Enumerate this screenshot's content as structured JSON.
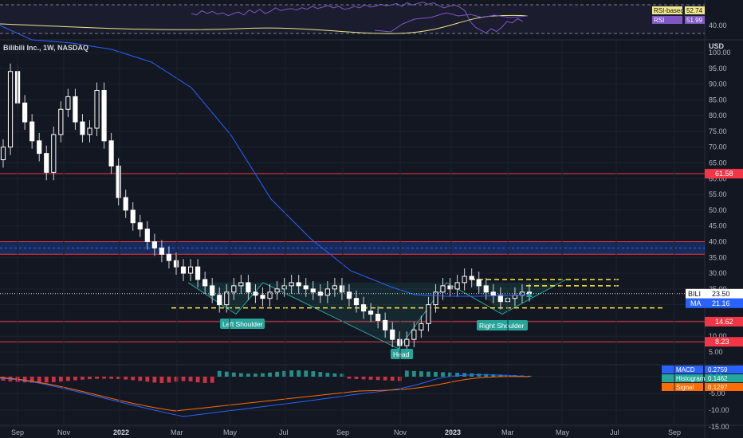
{
  "header": {
    "symbol_line": "Bilibili Inc., 1W, NASDAQ",
    "currency": "USD"
  },
  "rsi": {
    "labels": [
      {
        "name": "RSI-based MA",
        "value": "52.74",
        "color": "#f0e68c",
        "text": "#131722"
      },
      {
        "name": "RSI",
        "value": "51.99",
        "color": "#7e57c2",
        "text": "#ffffff"
      }
    ],
    "ticks": [
      "40.00"
    ]
  },
  "price_axis": {
    "ticks": [
      "100.00",
      "95.00",
      "90.00",
      "85.00",
      "80.00",
      "75.00",
      "70.00",
      "65.00",
      "60.00",
      "55.00",
      "50.00",
      "45.00",
      "40.00",
      "35.00",
      "30.00",
      "25.00",
      "20.00",
      "15.00",
      "10.00",
      "5.00"
    ]
  },
  "price_tags": [
    {
      "text": "61.58",
      "color": "#f23645",
      "price": 61.58
    },
    {
      "text": "14.62",
      "color": "#f23645",
      "price": 14.62
    },
    {
      "text": "8.23",
      "color": "#f23645",
      "price": 8.23
    }
  ],
  "last_price": {
    "symbol": "BILI",
    "value": "23.50",
    "ma_label": "MA",
    "ma_value": "21.16"
  },
  "macd": {
    "labels": [
      {
        "name": "MACD",
        "value": "0.2759",
        "color": "#2962ff"
      },
      {
        "name": "Histogram",
        "value": "0.1462",
        "color": "#26a69a"
      },
      {
        "name": "Signal",
        "value": "0.1297",
        "color": "#ff6d00"
      }
    ],
    "ticks": [
      "0.00",
      "-5.00",
      "-10.00",
      "-15.00"
    ]
  },
  "time_axis": [
    "Sep",
    "Nov",
    "2022",
    "Mar",
    "May",
    "Jul",
    "Sep",
    "Nov",
    "2023",
    "Mar",
    "May",
    "Jul",
    "Sep"
  ],
  "annotations": [
    {
      "text": "Left Shoulder"
    },
    {
      "text": "Head"
    },
    {
      "text": "Right Shoulder"
    }
  ],
  "colors": {
    "up": "#ffffff",
    "down": "#ffffff",
    "ma": "#2962ff",
    "support": "#f23645",
    "neckline": "#ffeb3b",
    "pattern": "#26a69a"
  },
  "chart_data": {
    "type": "candlestick",
    "title": "Bilibili Inc., 1W, NASDAQ",
    "ylabel": "USD",
    "ylim": [
      5,
      100
    ],
    "closes": [
      70,
      94,
      84,
      78,
      72,
      68,
      62,
      74,
      82,
      86,
      78,
      74,
      76,
      88,
      72,
      64,
      54,
      50,
      46,
      44,
      40,
      38,
      36,
      34,
      32,
      30,
      32,
      28,
      26,
      23,
      20,
      24,
      26,
      27,
      24,
      23,
      22,
      24,
      25,
      26,
      27,
      26,
      25,
      24,
      23,
      25,
      26,
      24,
      22,
      20,
      18,
      17,
      15,
      12,
      9,
      7,
      9,
      12,
      14,
      20,
      24,
      26,
      25,
      27,
      29,
      28,
      26,
      24,
      23,
      21,
      22,
      23,
      24,
      23.5
    ],
    "moving_average": {
      "name": "MA",
      "last": 21.16
    },
    "levels": [
      61.58,
      14.62,
      8.23
    ],
    "neckline": 28
  }
}
